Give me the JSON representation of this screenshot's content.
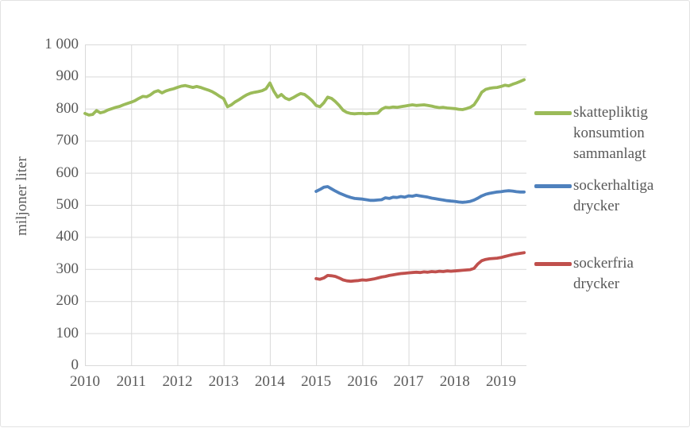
{
  "chart_data": {
    "type": "line",
    "title": "",
    "xlabel": "",
    "ylabel": "miljoner liter",
    "ylim": [
      0,
      1000
    ],
    "ytick_step": 100,
    "ytick_labels": [
      "0",
      "100",
      "200",
      "300",
      "400",
      "500",
      "600",
      "700",
      "800",
      "900",
      "1 000"
    ],
    "x_years": [
      2010,
      2011,
      2012,
      2013,
      2014,
      2015,
      2016,
      2017,
      2018,
      2019
    ],
    "x_resolution": "monthly",
    "grid": true,
    "legend_position": "right",
    "grid_color": "#d9d9d9",
    "text_color": "#595959",
    "series": [
      {
        "name": "skattepliktig konsumtion sammanlagt",
        "legend_lines": [
          "skattepliktig",
          "konsumtion",
          "sammanlagt"
        ],
        "color": "#9bbb59",
        "start": "2015-01",
        "start_month_offset": 0,
        "values": [
          785,
          780,
          782,
          794,
          787,
          790,
          796,
          800,
          804,
          807,
          812,
          816,
          820,
          825,
          832,
          838,
          837,
          843,
          852,
          856,
          849,
          855,
          859,
          862,
          866,
          870,
          872,
          869,
          866,
          869,
          866,
          862,
          858,
          853,
          846,
          838,
          831,
          806,
          812,
          821,
          828,
          836,
          843,
          848,
          851,
          853,
          856,
          862,
          880,
          855,
          836,
          844,
          833,
          828,
          834,
          841,
          847,
          844,
          835,
          824,
          810,
          806,
          818,
          836,
          832,
          822,
          810,
          795,
          788,
          785,
          784,
          785,
          785,
          784,
          785,
          785,
          786,
          798,
          804,
          803,
          805,
          804,
          806,
          808,
          810,
          812,
          810,
          811,
          812,
          810,
          808,
          805,
          803,
          804,
          802,
          801,
          800,
          798,
          797,
          800,
          804,
          812,
          830,
          851,
          860,
          863,
          865,
          866,
          869,
          873,
          871,
          876,
          880,
          885,
          890
        ]
      },
      {
        "name": "sockerhaltiga drycker",
        "legend_lines": [
          "sockerhaltiga",
          "drycker"
        ],
        "color": "#4f81bd",
        "start": "2015-01",
        "start_month_offset": 60,
        "values": [
          542,
          548,
          555,
          557,
          550,
          543,
          537,
          532,
          527,
          523,
          520,
          519,
          518,
          516,
          514,
          514,
          515,
          516,
          522,
          520,
          524,
          523,
          526,
          524,
          528,
          527,
          530,
          528,
          526,
          524,
          521,
          519,
          517,
          515,
          513,
          512,
          511,
          509,
          508,
          509,
          511,
          515,
          521,
          528,
          533,
          536,
          538,
          540,
          541,
          543,
          544,
          543,
          541,
          540,
          540
        ]
      },
      {
        "name": "sockerfria drycker",
        "legend_lines": [
          "sockerfria",
          "drycker"
        ],
        "color": "#c0504d",
        "start": "2015-01",
        "start_month_offset": 60,
        "values": [
          270,
          268,
          272,
          280,
          279,
          277,
          272,
          266,
          263,
          262,
          263,
          264,
          266,
          265,
          267,
          269,
          272,
          275,
          277,
          280,
          282,
          284,
          286,
          287,
          288,
          289,
          290,
          289,
          291,
          290,
          292,
          291,
          293,
          292,
          294,
          293,
          294,
          295,
          296,
          297,
          298,
          302,
          316,
          326,
          330,
          332,
          333,
          334,
          336,
          339,
          342,
          345,
          347,
          349,
          351
        ]
      }
    ]
  }
}
